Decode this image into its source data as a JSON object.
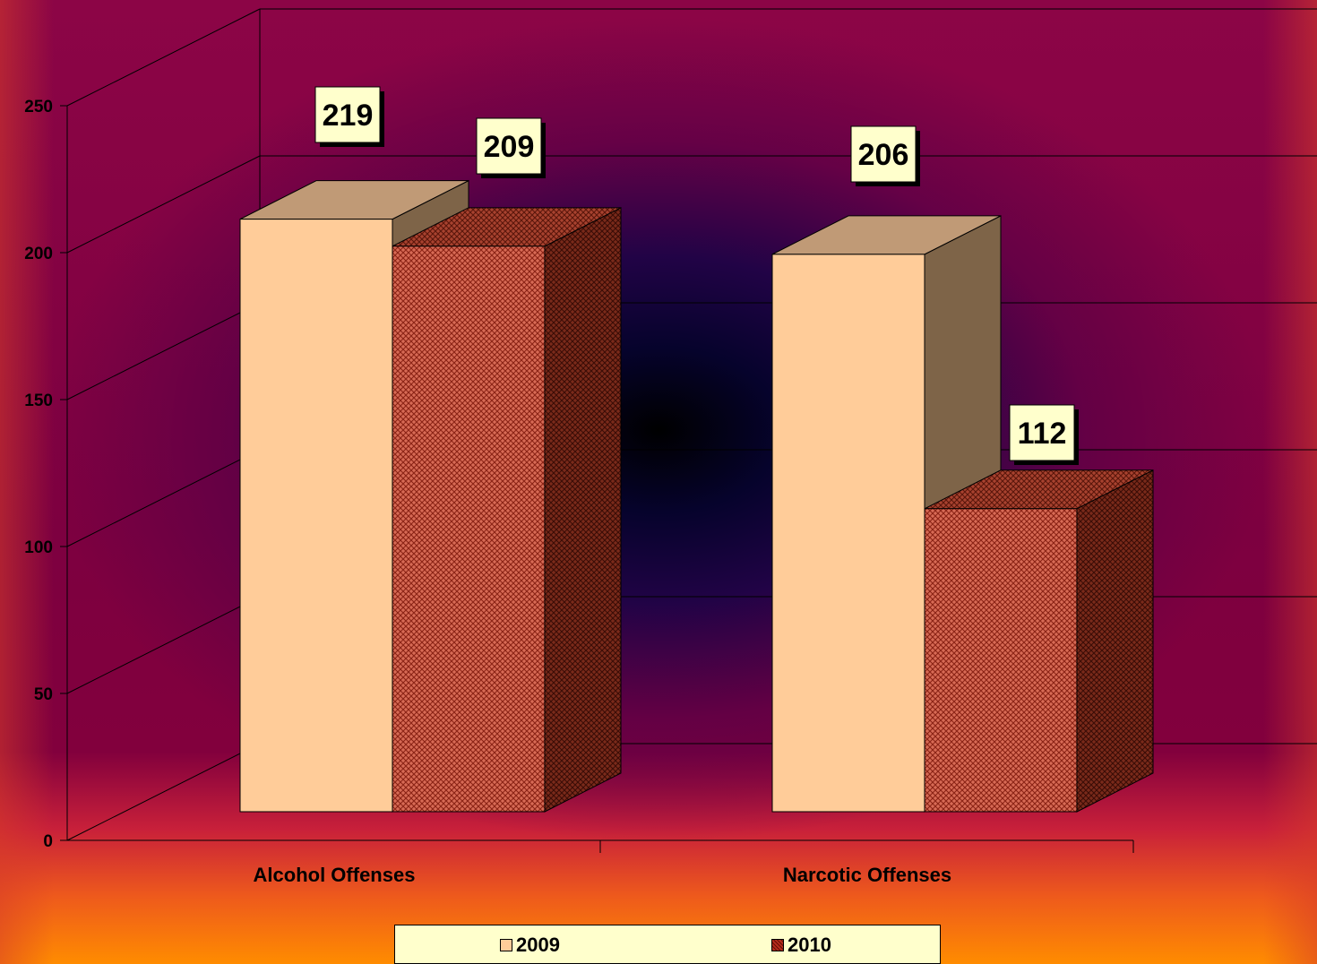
{
  "chart_data": {
    "type": "bar",
    "style": "3d-clustered-column",
    "categories": [
      "Alcohol Offenses",
      "Narcotic Offenses"
    ],
    "series": [
      {
        "name": "2009",
        "values": [
          219,
          206
        ],
        "color": "#ffcc99",
        "fill": "solid"
      },
      {
        "name": "2010",
        "values": [
          209,
          112
        ],
        "color": "#cc5a46",
        "fill": "crosshatch"
      }
    ],
    "yticks": [
      "0",
      "50",
      "100",
      "150",
      "200",
      "250"
    ],
    "ylim": [
      0,
      250
    ],
    "grid": true,
    "data_labels": true,
    "legend": "bottom"
  },
  "legend_items": [
    {
      "label": "2009",
      "color": "#ffcc99",
      "fill": "solid"
    },
    {
      "label": "2010",
      "color": "#cc5a46",
      "fill": "crosshatch"
    }
  ]
}
